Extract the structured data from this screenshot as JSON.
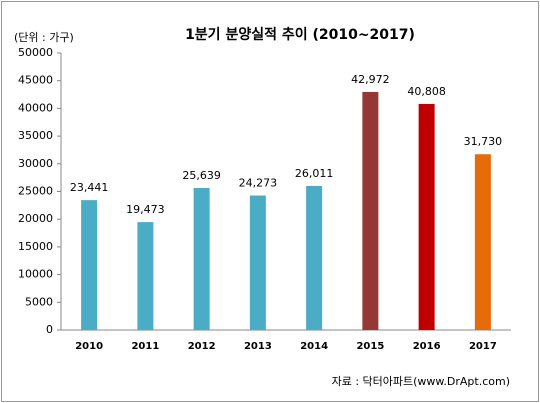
{
  "chart_data": {
    "type": "bar",
    "title": "1분기 분양실적 추이 (2010~2017)",
    "unit_label": "(단위 : 가구)",
    "source": "자료 : 닥터아파트(www.DrApt.com)",
    "categories": [
      "2010",
      "2011",
      "2012",
      "2013",
      "2014",
      "2015",
      "2016",
      "2017"
    ],
    "values": [
      23441,
      19473,
      25639,
      24273,
      26011,
      42972,
      40808,
      31730
    ],
    "value_labels": [
      "23,441",
      "19,473",
      "25,639",
      "24,273",
      "26,011",
      "42,972",
      "40,808",
      "31,730"
    ],
    "colors": [
      "#4bacc6",
      "#4bacc6",
      "#4bacc6",
      "#4bacc6",
      "#4bacc6",
      "#953735",
      "#c00000",
      "#e46c0a"
    ],
    "ylim": [
      0,
      50000
    ],
    "yticks": [
      0,
      5000,
      10000,
      15000,
      20000,
      25000,
      30000,
      35000,
      40000,
      45000,
      50000
    ],
    "grid": false
  }
}
